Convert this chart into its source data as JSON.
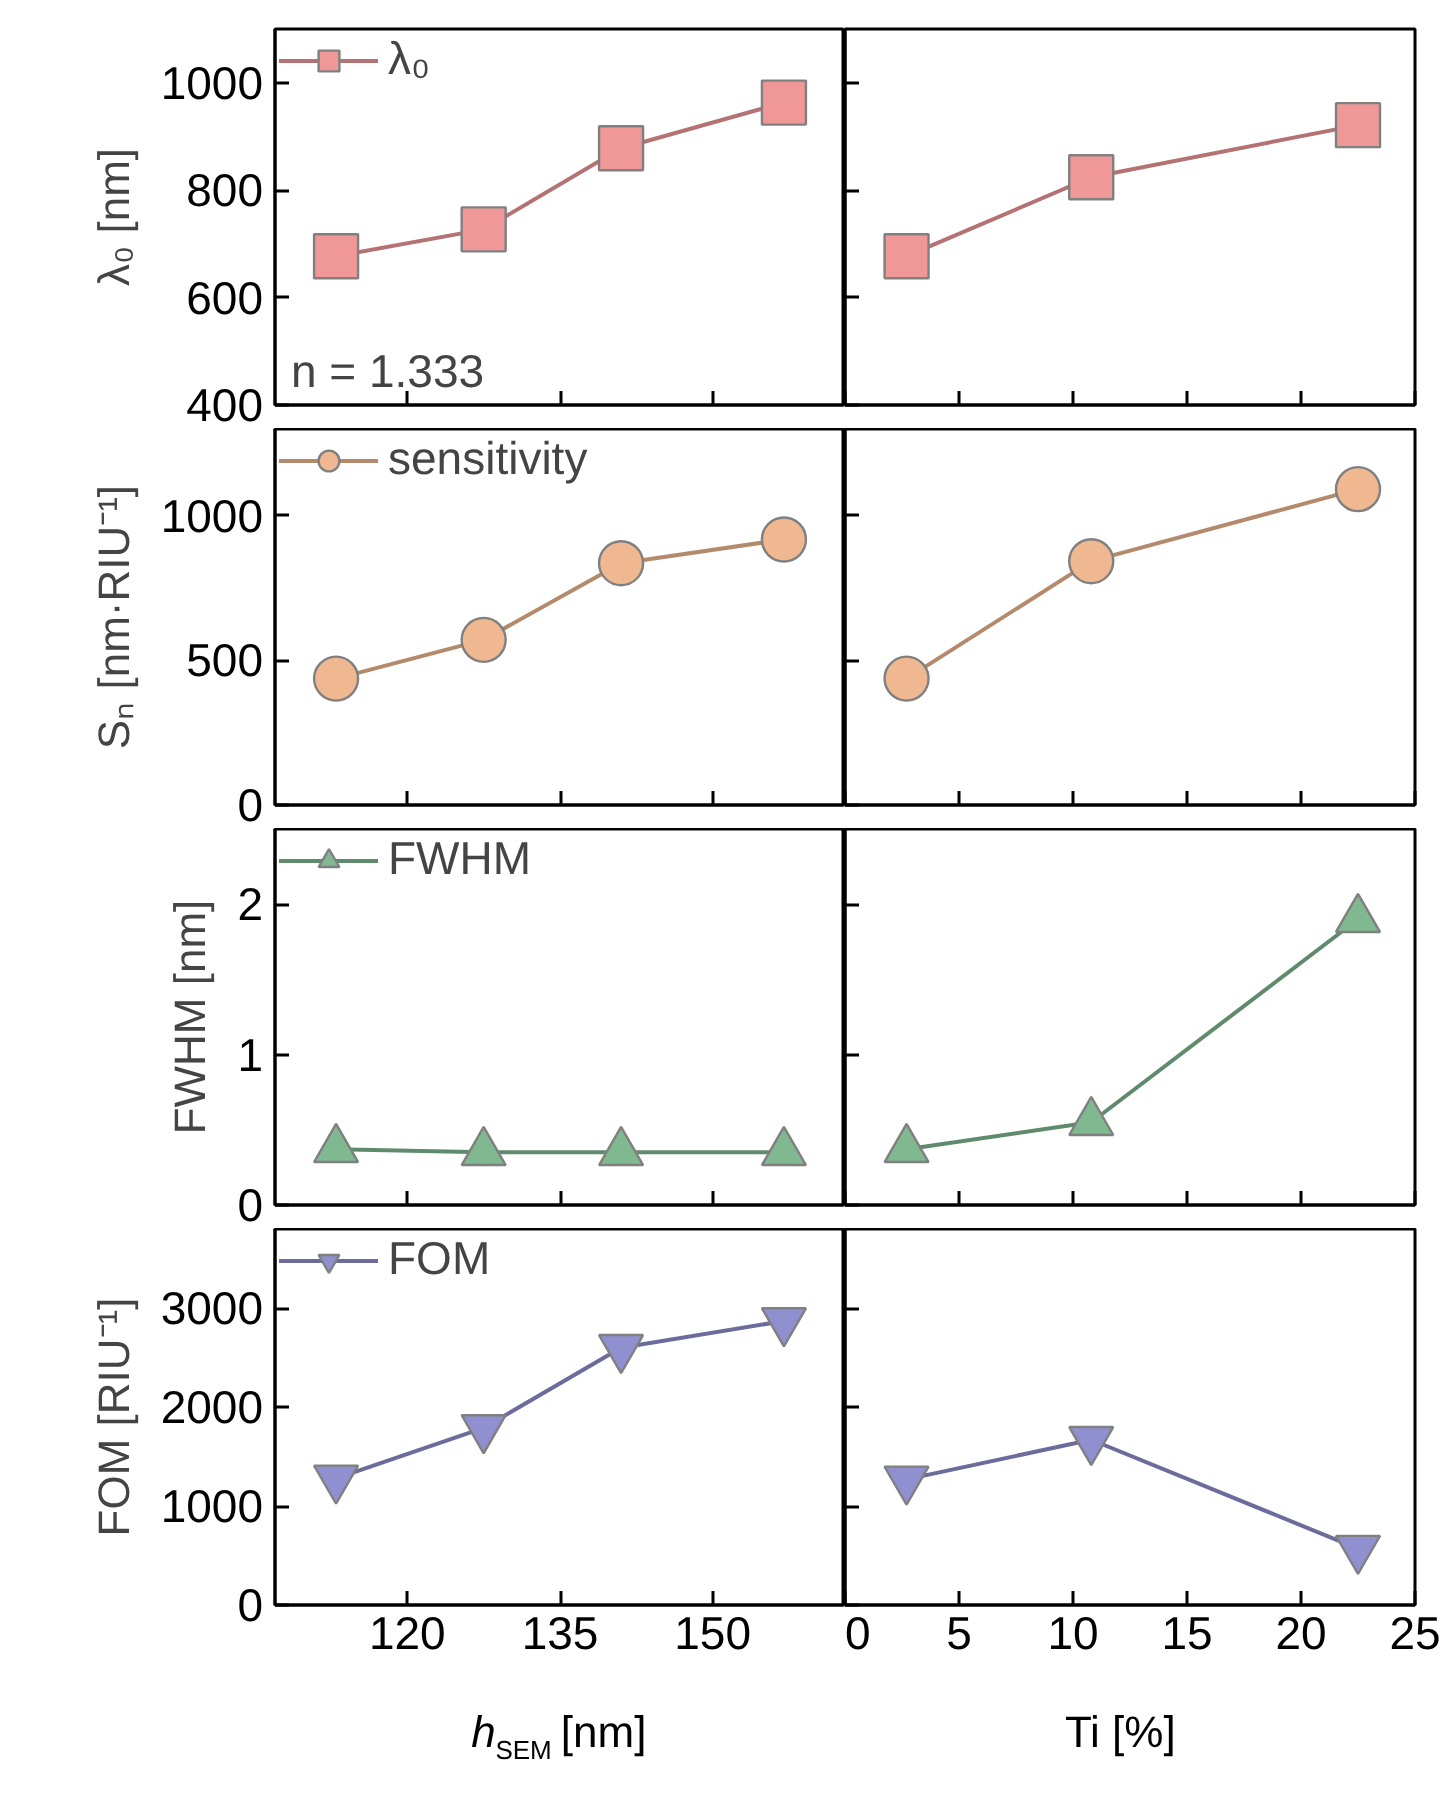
{
  "chart_data": [
    {
      "type": "line",
      "x": [
        113,
        127.5,
        141,
        157
      ],
      "xlim": [
        107,
        163
      ],
      "xticks": [
        120,
        135,
        150
      ],
      "ylim": [
        400,
        1100
      ],
      "yticks": [
        400,
        600,
        800,
        1000
      ],
      "ylabel": "λ₀ [nm]",
      "tick_labels": "y",
      "legend": "top left",
      "marker": "square",
      "annotations": [
        "n = 1.333"
      ],
      "series": [
        {
          "name": "λ₀",
          "color": "#f09898",
          "values": [
            677,
            727,
            878,
            963
          ]
        }
      ]
    },
    {
      "type": "line",
      "x": [
        2.7,
        10.8,
        22.5
      ],
      "xlim": [
        0,
        25
      ],
      "xticks": [
        0,
        5,
        10,
        15,
        20,
        25
      ],
      "ylim": [
        400,
        1100
      ],
      "yticks": [
        400,
        600,
        800,
        1000
      ],
      "tick_labels": false,
      "marker": "square",
      "series": [
        {
          "color": "#f09898",
          "values": [
            677,
            824,
            921
          ]
        }
      ]
    },
    {
      "type": "line",
      "x": [
        113,
        127.5,
        141,
        157
      ],
      "xlim": [
        107,
        163
      ],
      "xticks": [
        120,
        135,
        150
      ],
      "ylim": [
        0,
        1300
      ],
      "yticks": [
        0,
        500,
        1000
      ],
      "ylabel": "Sₙ [nm·RIU⁻¹]",
      "tick_labels": "y",
      "legend": "top left",
      "marker": "circle",
      "series": [
        {
          "name": "sensitivity",
          "color": "#f0b890",
          "values": [
            437,
            571,
            836,
            918
          ]
        }
      ]
    },
    {
      "type": "line",
      "x": [
        2.7,
        10.8,
        22.5
      ],
      "xlim": [
        0,
        25
      ],
      "xticks": [
        0,
        5,
        10,
        15,
        20,
        25
      ],
      "ylim": [
        0,
        1300
      ],
      "yticks": [
        0,
        500,
        1000
      ],
      "tick_labels": false,
      "marker": "circle",
      "series": [
        {
          "color": "#f0b890",
          "values": [
            437,
            843,
            1092
          ]
        }
      ]
    },
    {
      "type": "line",
      "x": [
        113,
        127.5,
        141,
        157
      ],
      "xlim": [
        107,
        163
      ],
      "xticks": [
        120,
        135,
        150
      ],
      "ylim": [
        0,
        2.5
      ],
      "yticks": [
        0,
        1,
        2
      ],
      "ylabel": "FWHM [nm]",
      "tick_labels": "y",
      "legend": "top left",
      "marker": "triangle",
      "series": [
        {
          "name": "FWHM",
          "color": "#80b890",
          "values": [
            0.37,
            0.35,
            0.35,
            0.35
          ]
        }
      ]
    },
    {
      "type": "line",
      "x": [
        2.7,
        10.8,
        22.5
      ],
      "xlim": [
        0,
        25
      ],
      "xticks": [
        0,
        5,
        10,
        15,
        20,
        25
      ],
      "ylim": [
        0,
        2.5
      ],
      "yticks": [
        0,
        1,
        2
      ],
      "tick_labels": false,
      "marker": "triangle",
      "series": [
        {
          "color": "#80b890",
          "values": [
            0.37,
            0.55,
            1.9
          ]
        }
      ]
    },
    {
      "type": "line",
      "x": [
        113,
        127.5,
        141,
        157
      ],
      "xlim": [
        107,
        163
      ],
      "xticks": [
        120,
        135,
        150
      ],
      "ylim": [
        0,
        3800
      ],
      "yticks": [
        0,
        1000,
        2000,
        3000
      ],
      "ylabel": "FOM [RIU⁻¹]",
      "xlabel": "h$_{SEM}$ [nm]",
      "legend": "top left",
      "marker": "triangle_down",
      "series": [
        {
          "name": "FOM",
          "color": "#9090d0",
          "values": [
            1280,
            1790,
            2600,
            2870
          ]
        }
      ]
    },
    {
      "type": "line",
      "x": [
        2.7,
        10.8,
        22.5
      ],
      "xlim": [
        0,
        25
      ],
      "xticks": [
        0,
        5,
        10,
        15,
        20,
        25
      ],
      "ylim": [
        0,
        3800
      ],
      "yticks": [
        0,
        1000,
        2000,
        3000
      ],
      "xlabel": "Ti [%]",
      "tick_labels": "x",
      "marker": "triangle_down",
      "series": [
        {
          "color": "#9090d0",
          "values": [
            1270,
            1670,
            570
          ]
        }
      ]
    }
  ]
}
